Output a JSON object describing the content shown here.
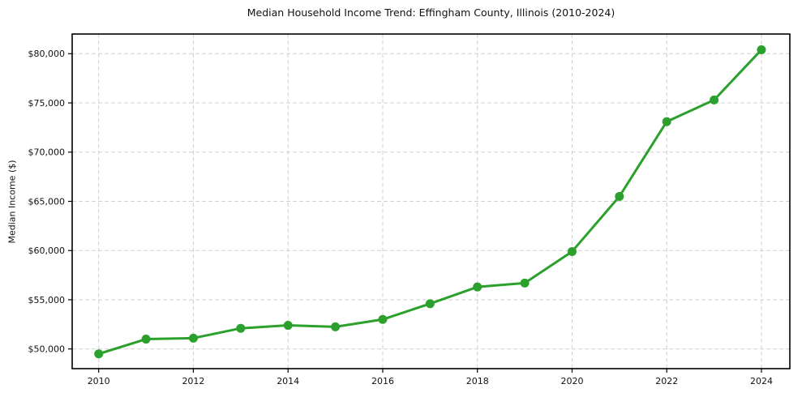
{
  "chart_data": {
    "type": "line",
    "title": "Median Household Income Trend: Effingham County, Illinois (2010-2024)",
    "xlabel": "",
    "ylabel": "Median Income ($)",
    "series": [
      {
        "name": "Median Household Income",
        "x": [
          2010,
          2011,
          2012,
          2013,
          2014,
          2015,
          2016,
          2017,
          2018,
          2019,
          2020,
          2021,
          2022,
          2023,
          2024
        ],
        "values": [
          49500,
          51000,
          51100,
          52100,
          52400,
          52250,
          53000,
          54600,
          56300,
          56700,
          59900,
          65500,
          73100,
          75300,
          80400
        ]
      }
    ],
    "xlim": [
      2009.44,
      2024.6
    ],
    "ylim": [
      48000,
      82000
    ],
    "xticks": [
      {
        "v": 2010,
        "label": "2010"
      },
      {
        "v": 2012,
        "label": "2012"
      },
      {
        "v": 2014,
        "label": "2014"
      },
      {
        "v": 2016,
        "label": "2016"
      },
      {
        "v": 2018,
        "label": "2018"
      },
      {
        "v": 2020,
        "label": "2020"
      },
      {
        "v": 2022,
        "label": "2022"
      },
      {
        "v": 2024,
        "label": "2024"
      }
    ],
    "yticks": [
      {
        "v": 50000,
        "label": "$50,000"
      },
      {
        "v": 55000,
        "label": "$55,000"
      },
      {
        "v": 60000,
        "label": "$60,000"
      },
      {
        "v": 65000,
        "label": "$65,000"
      },
      {
        "v": 70000,
        "label": "$70,000"
      },
      {
        "v": 75000,
        "label": "$75,000"
      },
      {
        "v": 80000,
        "label": "$80,000"
      }
    ],
    "grid": true,
    "legend_position": "none",
    "line_color": "#2ca02c",
    "marker": "circle",
    "marker_radius": 5.5,
    "line_width": 3,
    "grid_color": "#cfcfcf",
    "axis_color": "#000000",
    "background_color": "#ffffff"
  }
}
